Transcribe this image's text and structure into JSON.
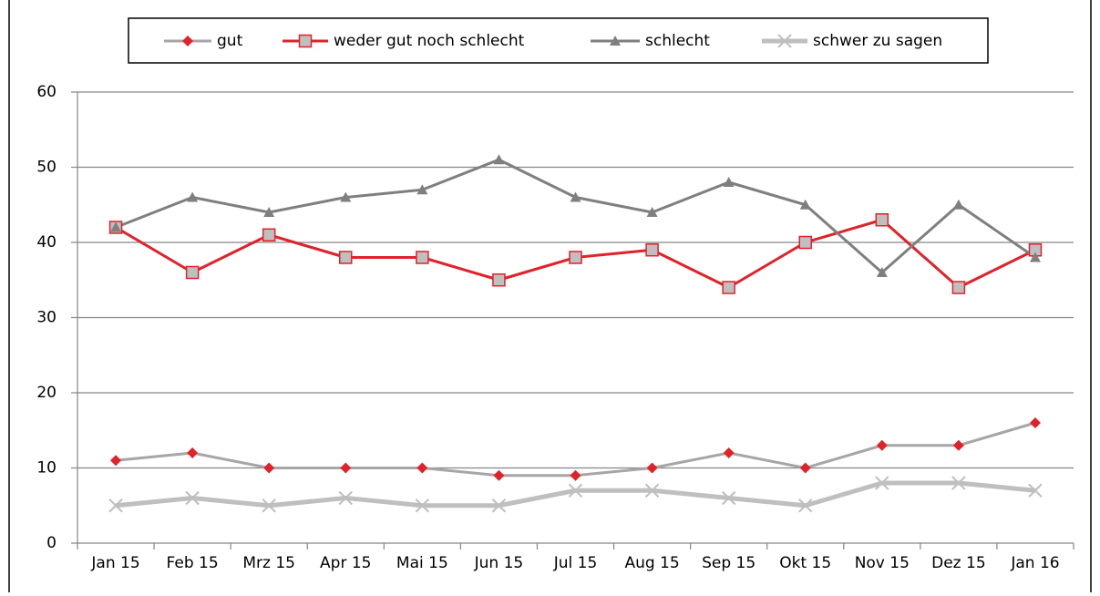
{
  "chart_data": {
    "type": "line",
    "categories": [
      "Jan 15",
      "Feb 15",
      "Mrz 15",
      "Apr 15",
      "Mai 15",
      "Jun 15",
      "Jul 15",
      "Aug 15",
      "Sep 15",
      "Okt 15",
      "Nov 15",
      "Dez 15",
      "Jan 16"
    ],
    "series": [
      {
        "name": "gut",
        "color": "#a6a6a6",
        "marker": "diamond",
        "marker_color": "#e0222a",
        "values": [
          11,
          12,
          10,
          10,
          10,
          9,
          9,
          10,
          12,
          10,
          13,
          13,
          16
        ]
      },
      {
        "name": "weder gut noch schlecht",
        "color": "#e0222a",
        "marker": "square",
        "marker_color": "#bfbfbf",
        "values": [
          42,
          36,
          41,
          38,
          38,
          35,
          38,
          39,
          34,
          40,
          43,
          34,
          39
        ]
      },
      {
        "name": "schlecht",
        "color": "#7f7f7f",
        "marker": "triangle",
        "marker_color": "#7f7f7f",
        "values": [
          42,
          46,
          44,
          46,
          47,
          51,
          46,
          44,
          48,
          45,
          36,
          45,
          38
        ]
      },
      {
        "name": "schwer zu sagen",
        "color": "#bfbfbf",
        "marker": "x",
        "marker_color": "#bfbfbf",
        "values": [
          5,
          6,
          5,
          6,
          5,
          5,
          7,
          7,
          6,
          5,
          8,
          8,
          7
        ]
      }
    ],
    "ylim": [
      0,
      60
    ],
    "yticks": [
      0,
      10,
      20,
      30,
      40,
      50,
      60
    ],
    "grid": true,
    "legend": "top"
  }
}
